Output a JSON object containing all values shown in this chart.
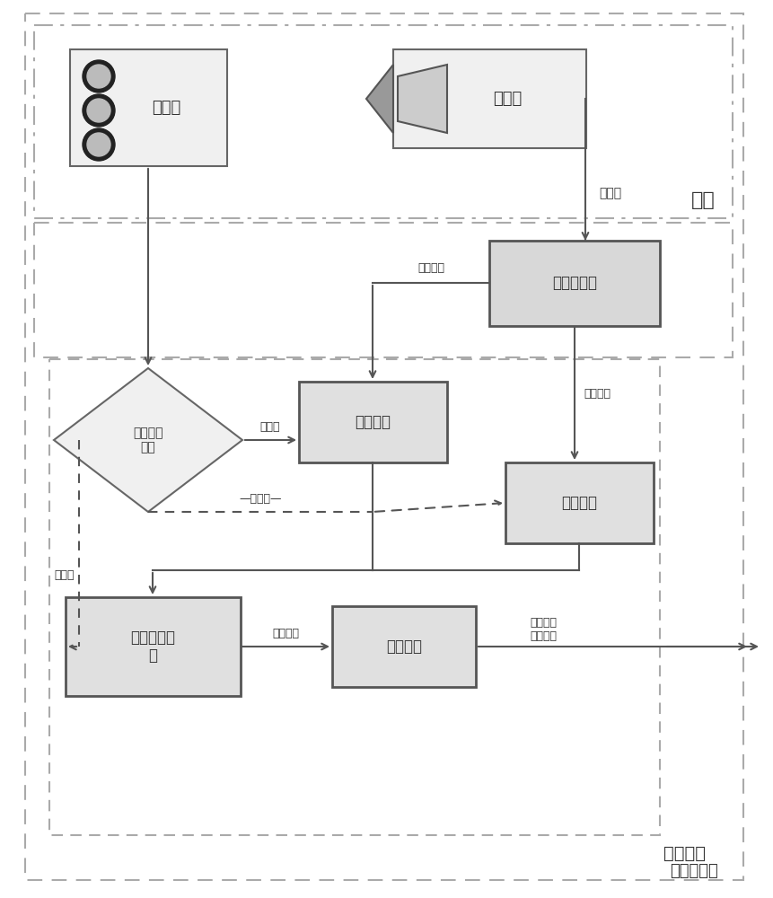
{
  "bg_color": "#ffffff",
  "font_color": "#333333",
  "box_fill_light": "#f5f5f5",
  "box_fill_dotted": "#e8e8e8",
  "box_edge": "#555555",
  "arrow_color": "#555555",
  "dash_color": "#888888",
  "region_dash_color": "#aaaaaa",
  "front_label": "前端",
  "backend_label": "后端工控机",
  "software_label": "检测软件",
  "video_stream_label": "视频流",
  "image_seq_label": "图像序列",
  "control_flow_label": "控制流",
  "signal_label": "信号机",
  "camera_label": "摄像头",
  "video_capture_label": "视频采集卡",
  "signal_detect_label": "信号相位\n检测",
  "vehicle_detect_label": "车辆检测",
  "motion_detect_label": "运动检测",
  "queue_detect_label": "队列长度检\n测",
  "length_convert_label": "长度变换",
  "actual_output_label": "实际排队\n长度输出",
  "image_length_label": "图像长度",
  "control_flow3_label": "控制流"
}
